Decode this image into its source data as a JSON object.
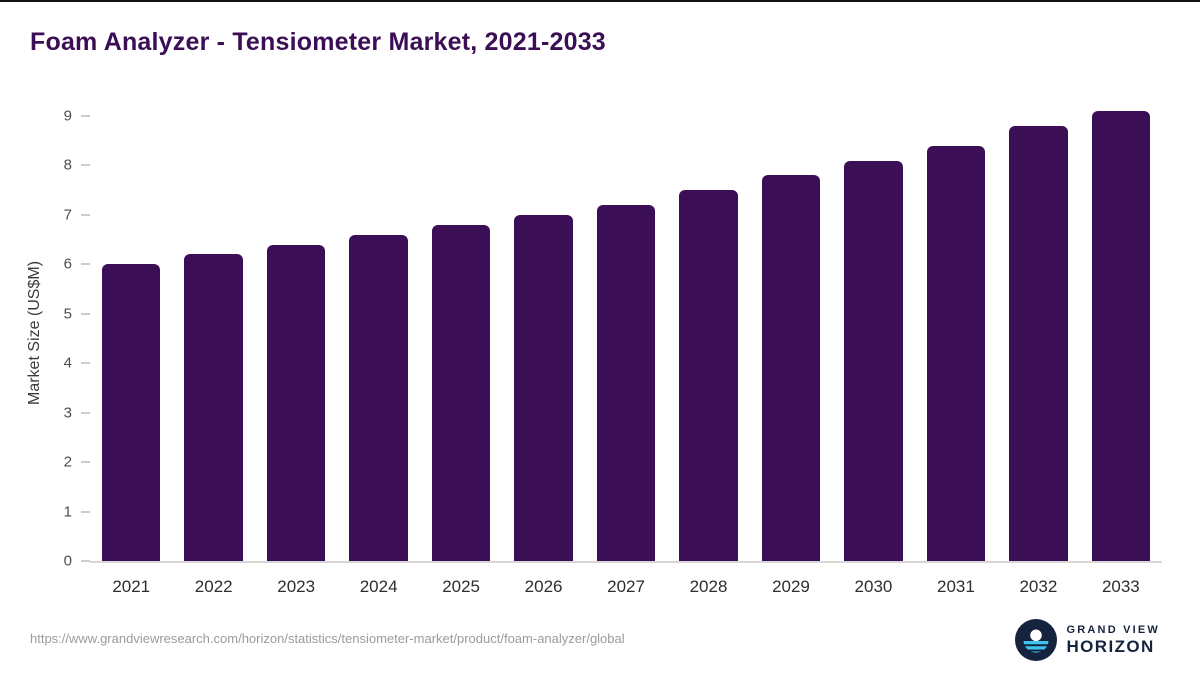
{
  "title": "Foam Analyzer - Tensiometer Market, 2021-2033",
  "chart_data": {
    "type": "bar",
    "title": "Foam Analyzer - Tensiometer Market, 2021-2033",
    "categories": [
      "2021",
      "2022",
      "2023",
      "2024",
      "2025",
      "2026",
      "2027",
      "2028",
      "2029",
      "2030",
      "2031",
      "2032",
      "2033"
    ],
    "values": [
      6.0,
      6.2,
      6.4,
      6.6,
      6.8,
      7.0,
      7.2,
      7.5,
      7.8,
      8.1,
      8.4,
      8.8,
      9.1
    ],
    "xlabel": "",
    "ylabel": "Market Size (US$M)",
    "ylim": [
      0,
      9
    ],
    "yticks": [
      0,
      1,
      2,
      3,
      4,
      5,
      6,
      7,
      8,
      9
    ],
    "grid": false,
    "legend": false,
    "bar_color": "#3b0e55"
  },
  "footer": {
    "source_url": "https://www.grandviewresearch.com/horizon/statistics/tensiometer-market/product/foam-analyzer/global",
    "logo": {
      "line1": "GRAND VIEW",
      "line2": "HORIZON"
    }
  },
  "colors": {
    "bar": "#3b0e55",
    "title_text": "#3b0e55",
    "axis_text": "#4d4d4d",
    "x_label_text": "#2e2e2e",
    "axis_line": "#d6d6d6",
    "source_text": "#9b9b9b",
    "logo_navy": "#16233f",
    "logo_blue": "#3ec6ef"
  }
}
